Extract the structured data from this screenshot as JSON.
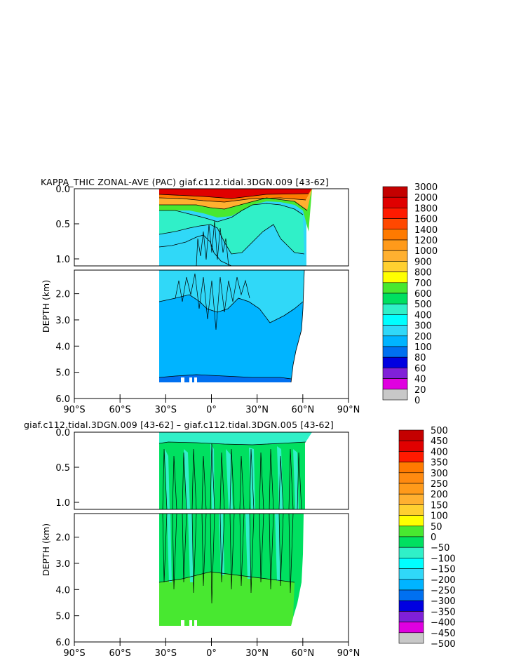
{
  "chart_data": [
    {
      "type": "heatmap",
      "title": "KAPPA_THIC ZONAL-AVE (PAC) giaf.c112.tidal.3DGN.009 [43-62]",
      "ylabel": "DEPTH (km)",
      "x_ticks": [
        "90°S",
        "60°S",
        "30°S",
        "0°",
        "30°N",
        "60°N",
        "90°N"
      ],
      "upper_y_ticks": [
        "0.0",
        "0.5",
        "1.0"
      ],
      "lower_y_ticks": [
        "2.0",
        "3.0",
        "4.0",
        "5.0",
        "6.0"
      ],
      "xlim": [
        -90,
        90
      ],
      "ylim": [
        6.0,
        0.0
      ],
      "colorbar": {
        "levels": [
          "3000",
          "2000",
          "1800",
          "1600",
          "1400",
          "1200",
          "1000",
          "900",
          "800",
          "700",
          "600",
          "500",
          "400",
          "300",
          "200",
          "100",
          "80",
          "60",
          "40",
          "20",
          "0"
        ],
        "colors": [
          "#c40000",
          "#e00000",
          "#ff1a00",
          "#ff4800",
          "#ff7a00",
          "#ff9a1a",
          "#ffb030",
          "#ffd030",
          "#ffff00",
          "#48e830",
          "#00e060",
          "#30f0c8",
          "#00ffff",
          "#30d8f8",
          "#00b4ff",
          "#0070f0",
          "#0000e0",
          "#8020d8",
          "#e000e0",
          "#c8c8c8",
          "#707070"
        ]
      }
    },
    {
      "type": "heatmap",
      "title": "giaf.c112.tidal.3DGN.009 [43-62] – giaf.c112.tidal.3DGN.005 [43-62]",
      "ylabel": "DEPTH (km)",
      "x_ticks": [
        "90°S",
        "60°S",
        "30°S",
        "0°",
        "30°N",
        "60°N",
        "90°N"
      ],
      "upper_y_ticks": [
        "0.0",
        "0.5",
        "1.0"
      ],
      "lower_y_ticks": [
        "2.0",
        "3.0",
        "4.0",
        "5.0",
        "6.0"
      ],
      "xlim": [
        -90,
        90
      ],
      "ylim": [
        6.0,
        0.0
      ],
      "colorbar": {
        "levels": [
          "500",
          "450",
          "400",
          "350",
          "300",
          "250",
          "200",
          "150",
          "100",
          "50",
          "0",
          "−50",
          "−100",
          "−150",
          "−200",
          "−250",
          "−300",
          "−350",
          "−400",
          "−450",
          "−500"
        ],
        "colors": [
          "#c40000",
          "#e00000",
          "#ff1a00",
          "#ff7a00",
          "#ff8a10",
          "#ff9a1a",
          "#ffb030",
          "#ffd030",
          "#ffff00",
          "#48e830",
          "#00e060",
          "#30f0c8",
          "#00ffff",
          "#30d8f8",
          "#00b4ff",
          "#0070f0",
          "#0000e0",
          "#8020d8",
          "#e000e0",
          "#c8c8c8",
          "#707070"
        ]
      }
    }
  ]
}
